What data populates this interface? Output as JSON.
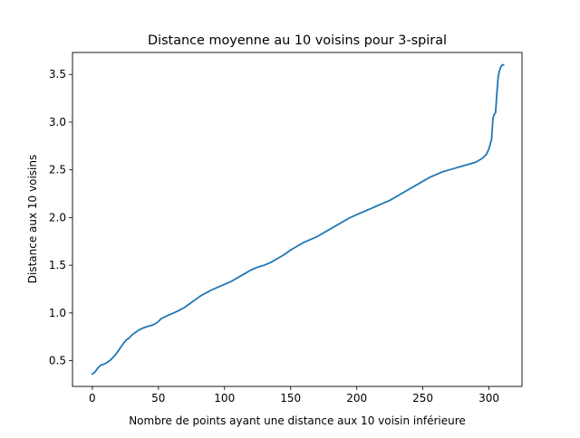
{
  "chart_data": {
    "type": "line",
    "title": "Distance moyenne au 10 voisins pour 3-spiral",
    "xlabel": "Nombre de points ayant une distance aux 10 voisin inférieure",
    "ylabel": "Distance aux 10 voisins",
    "xlim": [
      -15,
      325
    ],
    "ylim": [
      0.23,
      3.73
    ],
    "xticks": [
      0,
      50,
      100,
      150,
      200,
      250,
      300
    ],
    "yticks": [
      0.5,
      1.0,
      1.5,
      2.0,
      2.5,
      3.0,
      3.5
    ],
    "xtick_labels": [
      "0",
      "50",
      "100",
      "150",
      "200",
      "250",
      "300"
    ],
    "ytick_labels": [
      "0.5",
      "1.0",
      "1.5",
      "2.0",
      "2.5",
      "3.0",
      "3.5"
    ],
    "grid": false,
    "line_color": "#1f77b4",
    "series": [
      {
        "x": [
          0,
          2,
          4,
          6,
          8,
          10,
          12,
          14,
          16,
          18,
          20,
          22,
          24,
          26,
          28,
          30,
          32,
          35,
          38,
          40,
          42,
          45,
          48,
          50,
          52,
          55,
          58,
          60,
          63,
          66,
          70,
          74,
          78,
          82,
          86,
          90,
          95,
          100,
          105,
          110,
          115,
          120,
          125,
          130,
          135,
          140,
          145,
          150,
          155,
          160,
          165,
          170,
          175,
          180,
          185,
          190,
          195,
          200,
          205,
          210,
          215,
          220,
          225,
          230,
          235,
          240,
          245,
          250,
          255,
          260,
          265,
          270,
          275,
          280,
          285,
          290,
          295,
          298,
          300,
          302,
          303,
          304,
          305,
          306,
          307,
          308,
          309,
          310,
          311
        ],
        "y": [
          0.36,
          0.38,
          0.42,
          0.45,
          0.46,
          0.47,
          0.49,
          0.51,
          0.54,
          0.57,
          0.61,
          0.65,
          0.69,
          0.72,
          0.74,
          0.77,
          0.79,
          0.82,
          0.84,
          0.85,
          0.86,
          0.87,
          0.89,
          0.91,
          0.94,
          0.96,
          0.98,
          0.99,
          1.01,
          1.03,
          1.06,
          1.1,
          1.14,
          1.18,
          1.21,
          1.24,
          1.27,
          1.3,
          1.33,
          1.37,
          1.41,
          1.45,
          1.48,
          1.5,
          1.53,
          1.57,
          1.61,
          1.66,
          1.7,
          1.74,
          1.77,
          1.8,
          1.84,
          1.88,
          1.92,
          1.96,
          2.0,
          2.03,
          2.06,
          2.09,
          2.12,
          2.15,
          2.18,
          2.22,
          2.26,
          2.3,
          2.34,
          2.38,
          2.42,
          2.45,
          2.48,
          2.5,
          2.52,
          2.54,
          2.56,
          2.58,
          2.62,
          2.66,
          2.72,
          2.82,
          3.04,
          3.08,
          3.1,
          3.3,
          3.48,
          3.54,
          3.58,
          3.6,
          3.6
        ]
      }
    ]
  }
}
